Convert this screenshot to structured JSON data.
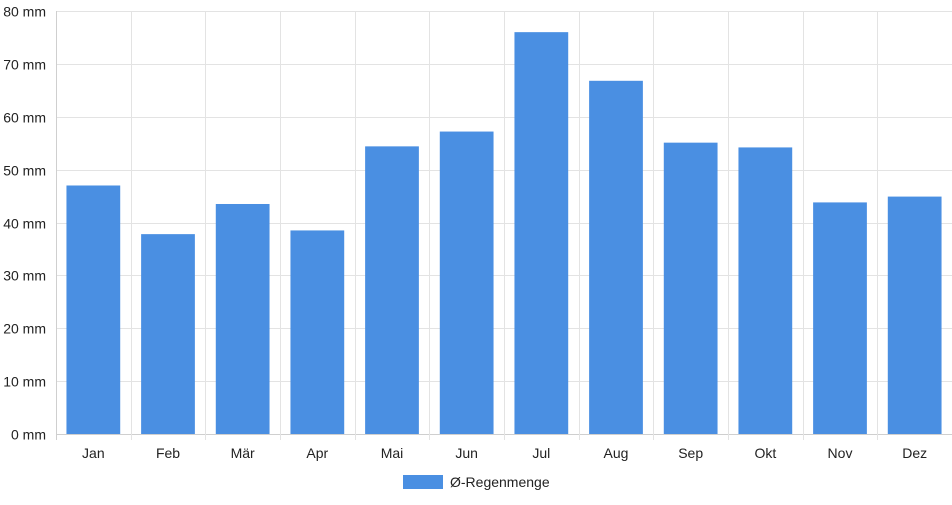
{
  "chart_data": {
    "type": "bar",
    "title": "",
    "xlabel": "",
    "ylabel": "",
    "categories": [
      "Jan",
      "Feb",
      "Mär",
      "Apr",
      "Mai",
      "Jun",
      "Jul",
      "Aug",
      "Sep",
      "Okt",
      "Nov",
      "Dez"
    ],
    "series": [
      {
        "name": "Ø-Regenmenge",
        "values": [
          47.0,
          37.8,
          43.5,
          38.5,
          54.4,
          57.2,
          76.0,
          66.8,
          55.1,
          54.2,
          43.8,
          44.9
        ]
      }
    ],
    "ylim": [
      0,
      80
    ],
    "y_ticks": [
      0,
      10,
      20,
      30,
      40,
      50,
      60,
      70,
      80
    ],
    "y_tick_labels": [
      "0 mm",
      "10 mm",
      "20 mm",
      "30 mm",
      "40 mm",
      "50 mm",
      "60 mm",
      "70 mm",
      "80 mm"
    ],
    "y_unit": "mm",
    "grid": true,
    "legend_position": "bottom-center",
    "colors": {
      "bar": "#4a8fe2",
      "grid": "#e3e3e3",
      "text": "#222222"
    }
  }
}
